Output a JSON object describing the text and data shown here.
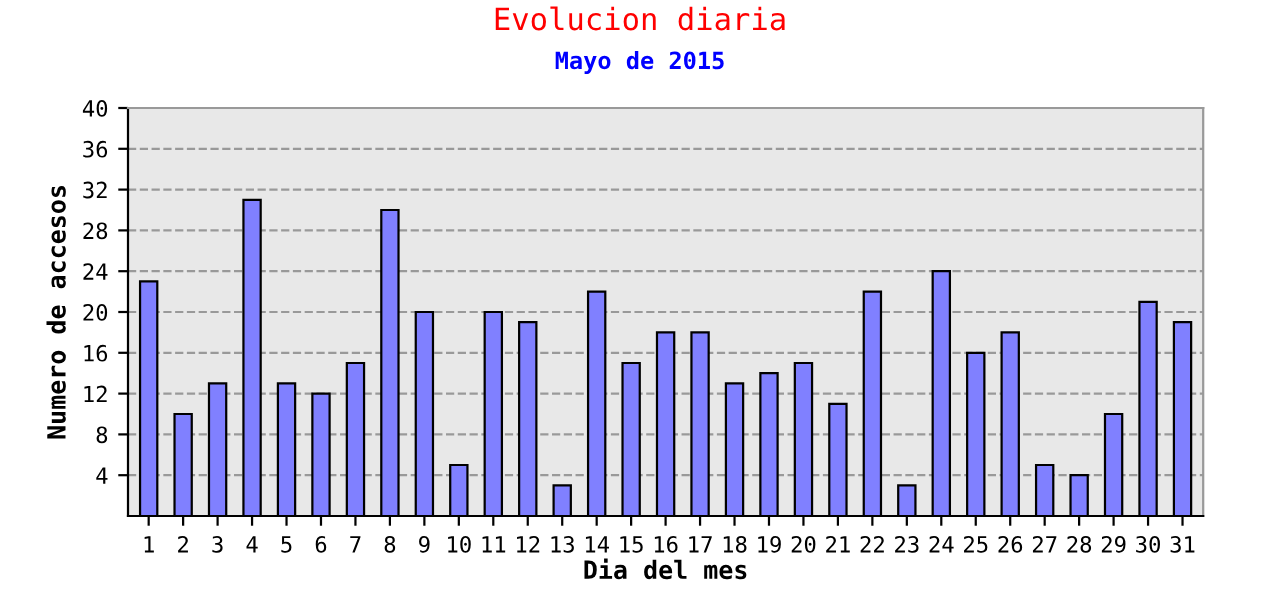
{
  "chart_data": {
    "type": "bar",
    "title": "Evolucion diaria",
    "subtitle": "Mayo de 2015",
    "xlabel": "Dia del mes",
    "ylabel": "Numero de accesos",
    "categories": [
      "1",
      "2",
      "3",
      "4",
      "5",
      "6",
      "7",
      "8",
      "9",
      "10",
      "11",
      "12",
      "13",
      "14",
      "15",
      "16",
      "17",
      "18",
      "19",
      "20",
      "21",
      "22",
      "23",
      "24",
      "25",
      "26",
      "27",
      "28",
      "29",
      "30",
      "31"
    ],
    "values": [
      23,
      10,
      13,
      31,
      13,
      12,
      15,
      30,
      20,
      5,
      20,
      19,
      3,
      22,
      15,
      18,
      18,
      13,
      14,
      15,
      11,
      22,
      3,
      24,
      16,
      18,
      5,
      4,
      10,
      21,
      19
    ],
    "color": "#8080ff",
    "ylim": [
      0,
      40
    ],
    "yticks": [
      4,
      8,
      12,
      16,
      20,
      24,
      28,
      32,
      36,
      40
    ],
    "grid": "y",
    "line_style": "dashed",
    "legend": false
  }
}
